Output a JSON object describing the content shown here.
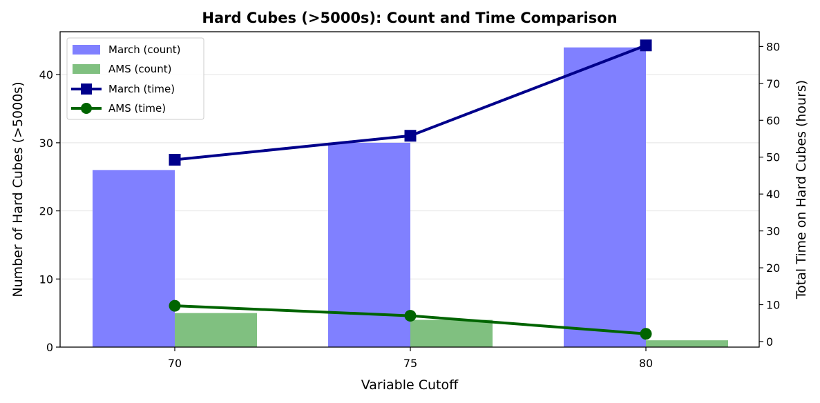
{
  "chart_data": {
    "type": "bar",
    "title": "Hard Cubes (>5000s): Count and Time Comparison",
    "xlabel": "Variable Cutoff",
    "ylabel": "Number of Hard Cubes (>5000s)",
    "ylabel_right": "Total Time on Hard Cubes (hours)",
    "categories": [
      "70",
      "75",
      "80"
    ],
    "ylim": [
      0,
      46.3
    ],
    "ylim_right": [
      -1.5,
      84
    ],
    "yticks": [
      0,
      10,
      20,
      30,
      40
    ],
    "yticks_right": [
      0,
      10,
      20,
      30,
      40,
      50,
      60,
      70,
      80
    ],
    "grid": true,
    "legend_position": "upper-left",
    "bar_series": [
      {
        "name": "March (count)",
        "values": [
          26,
          30,
          44
        ],
        "color": "#8080ff"
      },
      {
        "name": "AMS (count)",
        "values": [
          5,
          4,
          1
        ],
        "color": "#80c080"
      }
    ],
    "line_series": [
      {
        "name": "March (time)",
        "values": [
          49.3,
          55.8,
          80.3
        ],
        "color": "#00008b",
        "marker": "square"
      },
      {
        "name": "AMS (time)",
        "values": [
          9.7,
          7.0,
          2.1
        ],
        "color": "#006400",
        "marker": "circle"
      }
    ]
  }
}
